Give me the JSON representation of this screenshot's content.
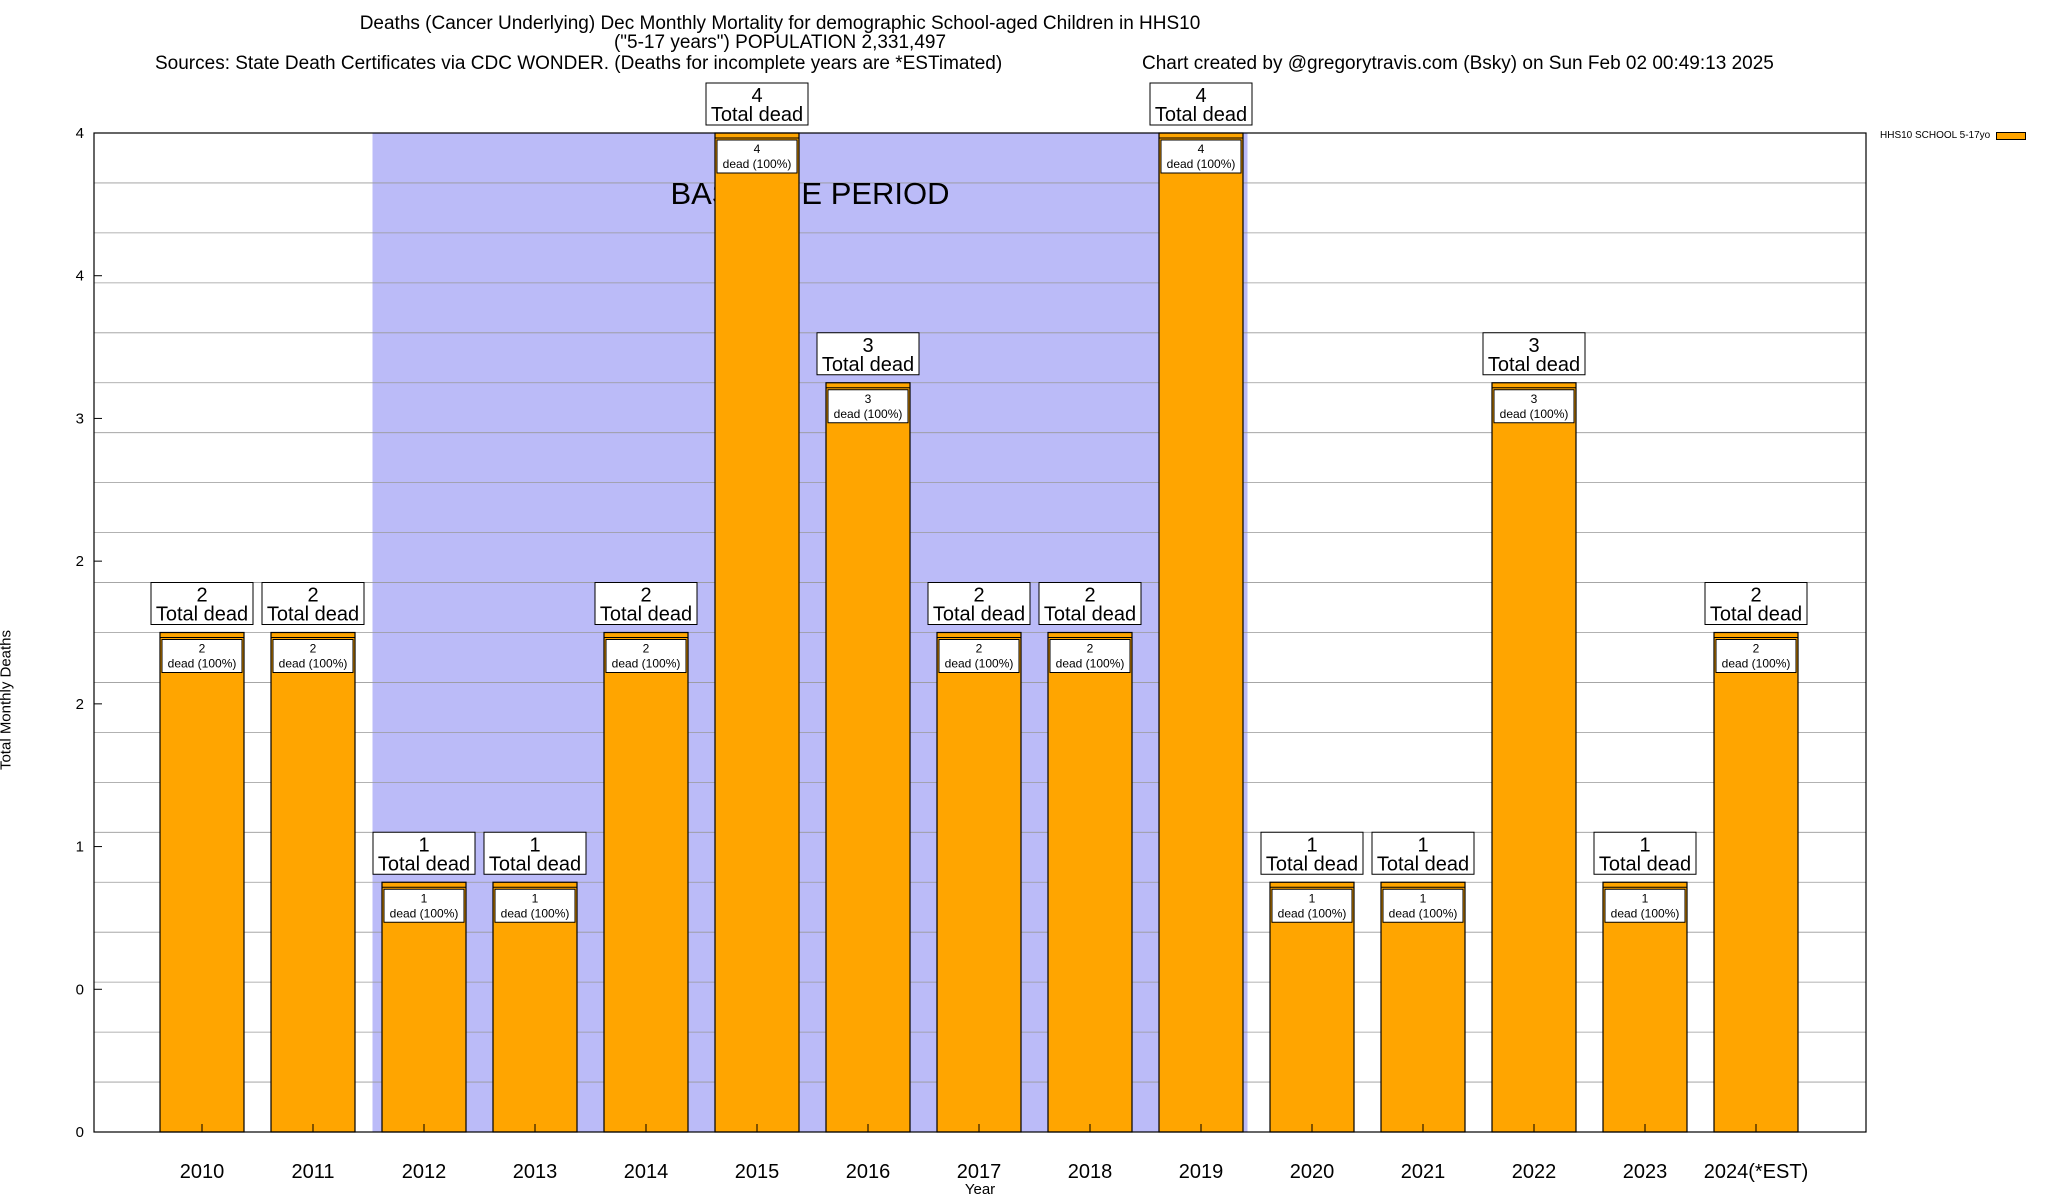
{
  "header": {
    "line1": "Deaths (Cancer Underlying) Dec Monthly Mortality for demographic School-aged Children in HHS10",
    "line2": "(\"5-17 years\") POPULATION 2,331,497",
    "sources": "Sources: State Death Certificates via CDC WONDER. (Deaths for incomplete years are *ESTimated)",
    "credit": "Chart created by @gregorytravis.com (Bsky) on Sun Feb 02 00:49:13 2025"
  },
  "chart_data": {
    "type": "bar",
    "xlabel": "Year",
    "ylabel": "Total Monthly Deaths",
    "ylim": [
      0,
      4
    ],
    "y_tick_labels": [
      "0",
      "0",
      "1",
      "2",
      "2",
      "3",
      "4",
      "4"
    ],
    "categories": [
      "2010",
      "2011",
      "2012",
      "2013",
      "2014",
      "2015",
      "2016",
      "2017",
      "2018",
      "2019",
      "2020",
      "2021",
      "2022",
      "2023",
      "2024(*EST)"
    ],
    "series": [
      {
        "name": "HHS10 SCHOOL 5-17yo",
        "color": "#FFA500",
        "values": [
          2,
          2,
          1,
          1,
          2,
          4,
          3,
          2,
          2,
          4,
          1,
          1,
          3,
          1,
          2
        ]
      }
    ],
    "total_labels": [
      "2",
      "2",
      "1",
      "1",
      "2",
      "4",
      "3",
      "2",
      "2",
      "4",
      "1",
      "1",
      "3",
      "1",
      "2"
    ],
    "total_suffix": "Total dead",
    "inner_counts": [
      "2",
      "2",
      "1",
      "1",
      "2",
      "4",
      "3",
      "2",
      "2",
      "4",
      "1",
      "1",
      "3",
      "1",
      "2"
    ],
    "inner_suffix": "dead (100%)",
    "baseline": {
      "label": "BASELINE PERIOD",
      "from": "2012",
      "to": "2019",
      "color": "#BBBBF8"
    },
    "legend_position": "top-right",
    "grid": true
  }
}
